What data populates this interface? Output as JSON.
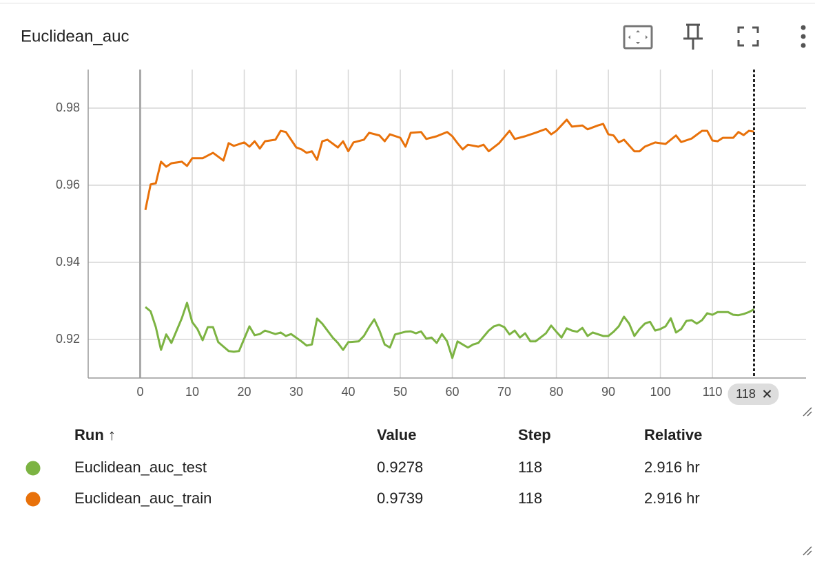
{
  "title": "Euclidean_auc",
  "chart_data": {
    "type": "line",
    "xlim": [
      -10,
      128
    ],
    "ylim": [
      0.91,
      0.99
    ],
    "xticks": [
      0,
      10,
      20,
      30,
      40,
      50,
      60,
      70,
      80,
      90,
      100,
      110
    ],
    "yticks": [
      0.92,
      0.94,
      0.96,
      0.98
    ],
    "grid": true,
    "cursor": 118,
    "series": [
      {
        "name": "Euclidean_auc_test",
        "color": "#7cb342",
        "x": [
          1,
          2,
          3,
          4,
          5,
          6,
          7,
          8,
          9,
          10,
          11,
          12,
          13,
          14,
          15,
          17,
          18,
          19,
          20,
          21,
          22,
          23,
          24,
          26,
          27,
          28,
          29,
          31,
          32,
          33,
          34,
          35,
          37,
          38,
          39,
          40,
          42,
          43,
          44,
          45,
          46,
          47,
          48,
          49,
          51,
          52,
          53,
          54,
          55,
          56,
          57,
          58,
          59,
          60,
          61,
          62,
          63,
          64,
          65,
          67,
          68,
          69,
          70,
          71,
          72,
          73,
          74,
          75,
          76,
          78,
          79,
          80,
          81,
          82,
          83,
          84,
          85,
          86,
          87,
          89,
          90,
          91,
          92,
          93,
          94,
          95,
          96,
          97,
          98,
          99,
          100,
          101,
          102,
          103,
          104,
          105,
          106,
          107,
          108,
          109,
          110,
          111,
          113,
          114,
          115,
          116,
          117,
          118
        ],
        "values": [
          0.9284,
          0.9273,
          0.9232,
          0.9173,
          0.9213,
          0.9191,
          0.9223,
          0.9255,
          0.9295,
          0.9245,
          0.9227,
          0.9198,
          0.9232,
          0.9232,
          0.9193,
          0.917,
          0.9168,
          0.917,
          0.9202,
          0.9234,
          0.9211,
          0.9214,
          0.9223,
          0.9214,
          0.9218,
          0.9209,
          0.9214,
          0.9195,
          0.9184,
          0.9187,
          0.9254,
          0.9241,
          0.9205,
          0.9191,
          0.9173,
          0.9193,
          0.9195,
          0.9209,
          0.9232,
          0.9252,
          0.9223,
          0.9187,
          0.9179,
          0.9213,
          0.922,
          0.9221,
          0.9216,
          0.9221,
          0.9202,
          0.9205,
          0.9191,
          0.9214,
          0.9195,
          0.9152,
          0.9195,
          0.9187,
          0.9179,
          0.9187,
          0.9191,
          0.9223,
          0.9234,
          0.9238,
          0.9232,
          0.9213,
          0.9223,
          0.9205,
          0.9216,
          0.9195,
          0.9195,
          0.9216,
          0.9236,
          0.922,
          0.9205,
          0.9229,
          0.9223,
          0.922,
          0.923,
          0.9209,
          0.9218,
          0.9209,
          0.9209,
          0.922,
          0.9234,
          0.9259,
          0.9241,
          0.9209,
          0.9227,
          0.9241,
          0.9246,
          0.9223,
          0.9227,
          0.9234,
          0.9255,
          0.9218,
          0.9227,
          0.9248,
          0.925,
          0.9241,
          0.925,
          0.9268,
          0.9264,
          0.9271,
          0.9271,
          0.9264,
          0.9263,
          0.9266,
          0.9271,
          0.9278
        ]
      },
      {
        "name": "Euclidean_auc_train",
        "color": "#e8710a",
        "x": [
          1,
          2,
          3,
          4,
          5,
          6,
          8,
          9,
          10,
          12,
          14,
          16,
          17,
          18,
          20,
          21,
          22,
          23,
          24,
          26,
          27,
          28,
          30,
          31,
          32,
          33,
          34,
          35,
          36,
          38,
          39,
          40,
          41,
          43,
          44,
          46,
          47,
          48,
          50,
          51,
          52,
          54,
          55,
          57,
          59,
          60,
          61,
          62,
          63,
          65,
          66,
          67,
          69,
          71,
          72,
          74,
          76,
          78,
          79,
          80,
          82,
          83,
          85,
          86,
          88,
          89,
          90,
          91,
          92,
          93,
          95,
          96,
          97,
          99,
          101,
          103,
          104,
          106,
          108,
          109,
          110,
          111,
          112,
          114,
          115,
          116,
          117,
          118
        ],
        "values": [
          0.9536,
          0.9602,
          0.9605,
          0.9661,
          0.9648,
          0.9657,
          0.9661,
          0.965,
          0.967,
          0.967,
          0.9684,
          0.9664,
          0.9709,
          0.9702,
          0.9711,
          0.97,
          0.9714,
          0.9695,
          0.9714,
          0.9718,
          0.9741,
          0.9738,
          0.9698,
          0.9693,
          0.9684,
          0.9688,
          0.9666,
          0.9714,
          0.9718,
          0.9698,
          0.9714,
          0.9688,
          0.9711,
          0.9718,
          0.9736,
          0.9729,
          0.9714,
          0.9732,
          0.9723,
          0.97,
          0.9736,
          0.9738,
          0.972,
          0.9727,
          0.9738,
          0.9727,
          0.9709,
          0.9693,
          0.9705,
          0.97,
          0.9705,
          0.9688,
          0.9709,
          0.9741,
          0.972,
          0.9727,
          0.9736,
          0.9746,
          0.9732,
          0.9741,
          0.977,
          0.9752,
          0.9755,
          0.9745,
          0.9755,
          0.9759,
          0.9732,
          0.9729,
          0.9711,
          0.9718,
          0.9688,
          0.9688,
          0.97,
          0.9711,
          0.9707,
          0.9729,
          0.9712,
          0.9721,
          0.9741,
          0.9741,
          0.9716,
          0.9714,
          0.9723,
          0.9723,
          0.9738,
          0.973,
          0.9741,
          0.9739
        ]
      }
    ]
  },
  "table": {
    "columns": [
      "Run ↑",
      "Value",
      "Step",
      "Relative"
    ],
    "rows": [
      [
        "0.9278",
        "118",
        "2.916 hr"
      ],
      [
        "0.9739",
        "118",
        "2.916 hr"
      ]
    ]
  }
}
